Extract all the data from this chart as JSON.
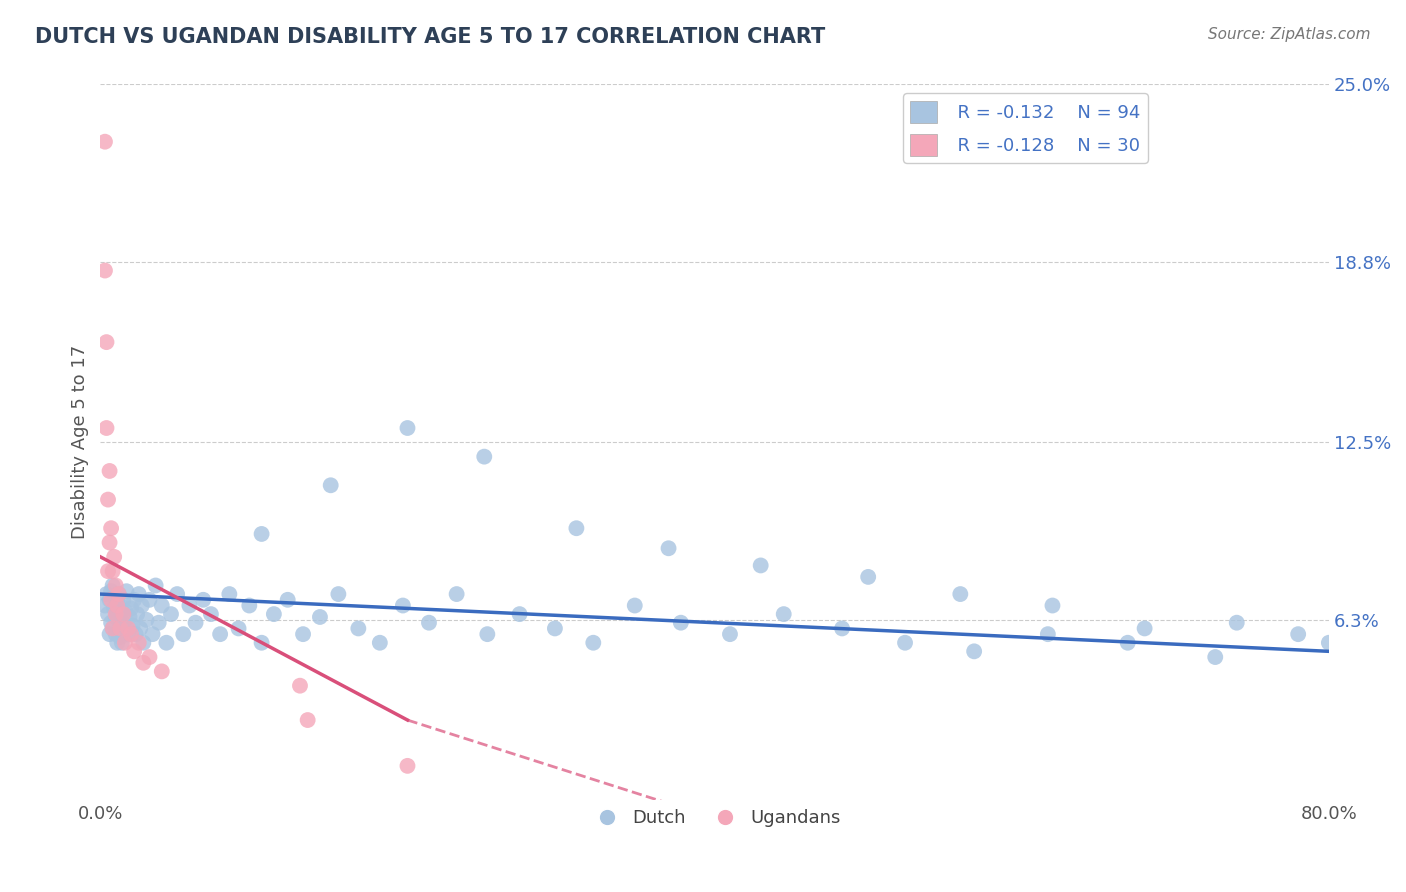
{
  "title": "DUTCH VS UGANDAN DISABILITY AGE 5 TO 17 CORRELATION CHART",
  "source": "Source: ZipAtlas.com",
  "ylabel": "Disability Age 5 to 17",
  "xlim": [
    0.0,
    0.8
  ],
  "ylim": [
    0.0,
    0.25
  ],
  "ytick_labels_right": [
    "6.3%",
    "12.5%",
    "18.8%",
    "25.0%"
  ],
  "ytick_values_right": [
    0.063,
    0.125,
    0.188,
    0.25
  ],
  "legend_dutch_r": "R = -0.132",
  "legend_dutch_n": "N = 94",
  "legend_ugandan_r": "R = -0.128",
  "legend_ugandan_n": "N = 30",
  "dutch_color": "#a8c4e0",
  "ugandan_color": "#f4a7b9",
  "dutch_line_color": "#3a6bbf",
  "ugandan_line_color": "#d94f7a",
  "title_color": "#2e4057",
  "axis_label_color": "#4472c4",
  "background_color": "#ffffff",
  "grid_color": "#cccccc",
  "dutch_x": [
    0.003,
    0.004,
    0.005,
    0.006,
    0.006,
    0.007,
    0.007,
    0.008,
    0.008,
    0.009,
    0.01,
    0.01,
    0.01,
    0.011,
    0.011,
    0.012,
    0.012,
    0.013,
    0.013,
    0.014,
    0.014,
    0.015,
    0.015,
    0.016,
    0.017,
    0.017,
    0.018,
    0.019,
    0.02,
    0.021,
    0.022,
    0.023,
    0.024,
    0.025,
    0.026,
    0.027,
    0.028,
    0.03,
    0.032,
    0.034,
    0.036,
    0.038,
    0.04,
    0.043,
    0.046,
    0.05,
    0.054,
    0.058,
    0.062,
    0.067,
    0.072,
    0.078,
    0.084,
    0.09,
    0.097,
    0.105,
    0.113,
    0.122,
    0.132,
    0.143,
    0.155,
    0.168,
    0.182,
    0.197,
    0.214,
    0.232,
    0.252,
    0.273,
    0.296,
    0.321,
    0.348,
    0.378,
    0.41,
    0.445,
    0.483,
    0.524,
    0.569,
    0.617,
    0.669,
    0.726,
    0.105,
    0.15,
    0.2,
    0.25,
    0.31,
    0.37,
    0.43,
    0.5,
    0.56,
    0.62,
    0.68,
    0.74,
    0.78,
    0.8
  ],
  "dutch_y": [
    0.068,
    0.072,
    0.065,
    0.07,
    0.058,
    0.073,
    0.062,
    0.075,
    0.06,
    0.067,
    0.071,
    0.064,
    0.058,
    0.069,
    0.055,
    0.072,
    0.063,
    0.068,
    0.057,
    0.066,
    0.055,
    0.07,
    0.062,
    0.066,
    0.06,
    0.073,
    0.058,
    0.064,
    0.067,
    0.061,
    0.07,
    0.058,
    0.065,
    0.072,
    0.06,
    0.068,
    0.055,
    0.063,
    0.07,
    0.058,
    0.075,
    0.062,
    0.068,
    0.055,
    0.065,
    0.072,
    0.058,
    0.068,
    0.062,
    0.07,
    0.065,
    0.058,
    0.072,
    0.06,
    0.068,
    0.055,
    0.065,
    0.07,
    0.058,
    0.064,
    0.072,
    0.06,
    0.055,
    0.068,
    0.062,
    0.072,
    0.058,
    0.065,
    0.06,
    0.055,
    0.068,
    0.062,
    0.058,
    0.065,
    0.06,
    0.055,
    0.052,
    0.058,
    0.055,
    0.05,
    0.093,
    0.11,
    0.13,
    0.12,
    0.095,
    0.088,
    0.082,
    0.078,
    0.072,
    0.068,
    0.06,
    0.062,
    0.058,
    0.055
  ],
  "ugandan_x": [
    0.003,
    0.003,
    0.004,
    0.004,
    0.005,
    0.005,
    0.006,
    0.006,
    0.007,
    0.007,
    0.008,
    0.008,
    0.009,
    0.01,
    0.01,
    0.011,
    0.012,
    0.013,
    0.015,
    0.016,
    0.018,
    0.02,
    0.022,
    0.025,
    0.028,
    0.032,
    0.04,
    0.13,
    0.135,
    0.2
  ],
  "ugandan_y": [
    0.23,
    0.185,
    0.16,
    0.13,
    0.105,
    0.08,
    0.115,
    0.09,
    0.095,
    0.07,
    0.08,
    0.06,
    0.085,
    0.075,
    0.065,
    0.068,
    0.072,
    0.06,
    0.065,
    0.055,
    0.06,
    0.058,
    0.052,
    0.055,
    0.048,
    0.05,
    0.045,
    0.04,
    0.028,
    0.012
  ]
}
